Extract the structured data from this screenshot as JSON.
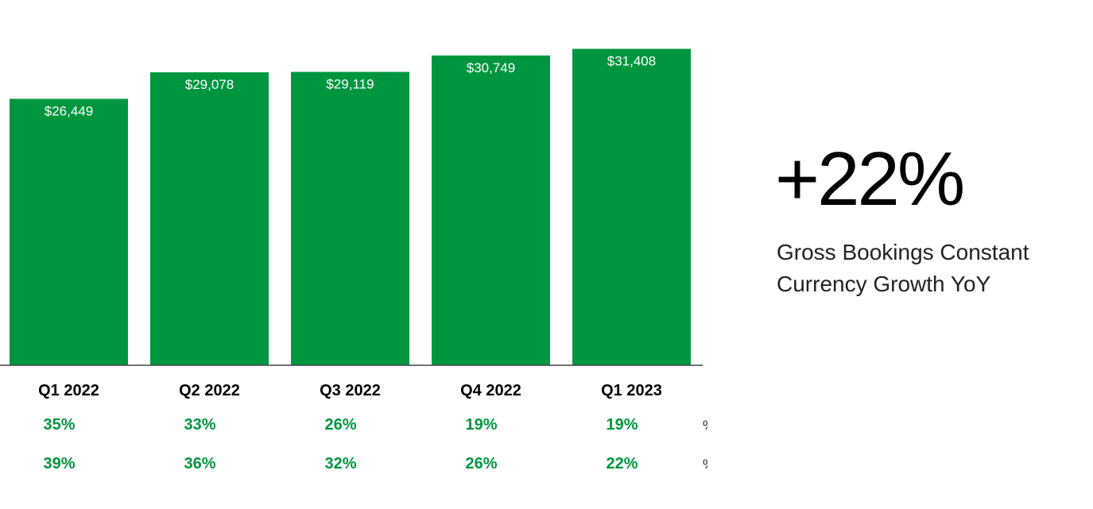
{
  "chart_data": {
    "type": "bar",
    "categories": [
      "Q1 2022",
      "Q2 2022",
      "Q3 2022",
      "Q4 2022",
      "Q1 2023"
    ],
    "values": [
      26449,
      29078,
      29119,
      30749,
      31408
    ],
    "data_labels": [
      "$26,449",
      "$29,078",
      "$29,119",
      "$30,749",
      "$31,408"
    ],
    "bar_color": "#00963f",
    "ylim": [
      0,
      32000
    ],
    "grid": false,
    "rows": [
      {
        "label": "% Growth YoY",
        "values": [
          "35%",
          "33%",
          "26%",
          "19%",
          "19%"
        ]
      },
      {
        "label": "% Constant Currency Growth YoY",
        "values": [
          "39%",
          "36%",
          "32%",
          "26%",
          "22%"
        ]
      }
    ],
    "row_color": "#00963f"
  },
  "callout": {
    "value": "+22%",
    "line1": "Gross Bookings Constant",
    "line2": "Currency Growth YoY"
  }
}
